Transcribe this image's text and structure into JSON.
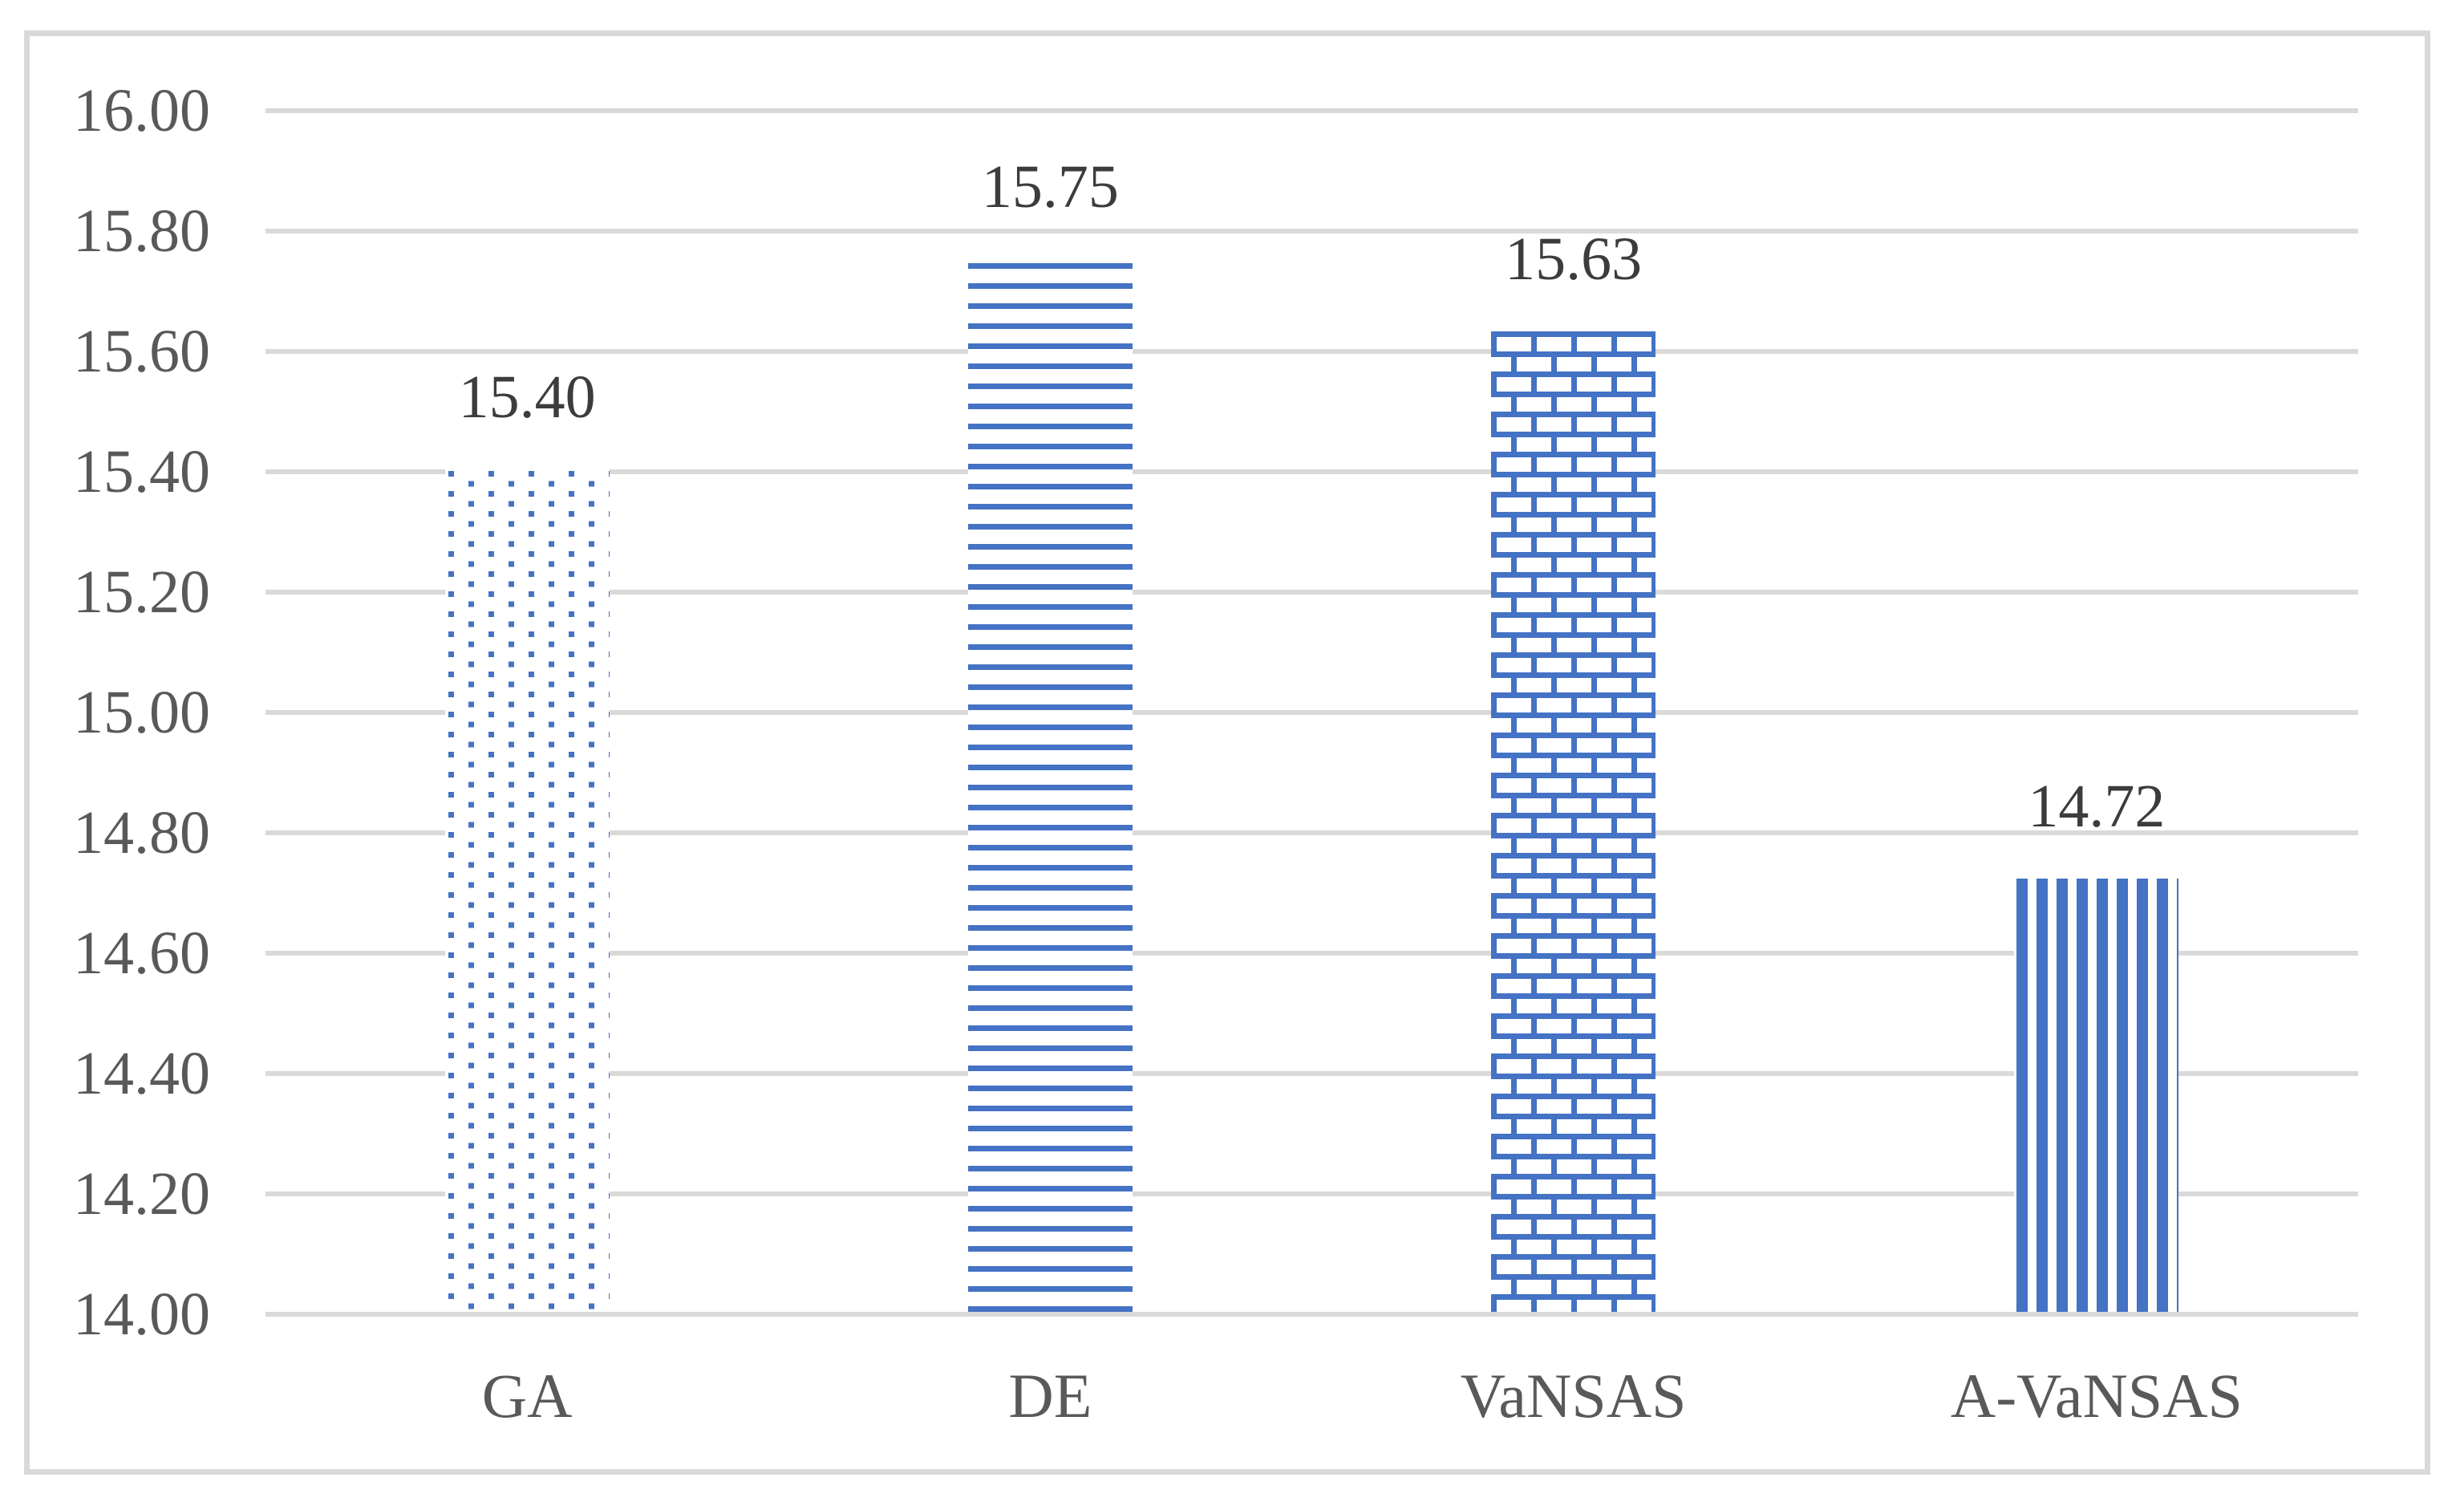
{
  "chart_data": {
    "type": "bar",
    "categories": [
      "GA",
      "DE",
      "VaNSAS",
      "A-VaNSAS"
    ],
    "values": [
      15.4,
      15.75,
      15.63,
      14.72
    ],
    "data_labels": [
      "15.40",
      "15.75",
      "15.63",
      "14.72"
    ],
    "bar_patterns": [
      "dots",
      "horizontal-lines",
      "bricks",
      "vertical-lines"
    ],
    "title": "",
    "xlabel": "",
    "ylabel": "",
    "ylim": [
      14.0,
      16.0
    ],
    "y_tick_step": 0.2,
    "y_tick_labels": [
      "16.00",
      "15.80",
      "15.60",
      "15.40",
      "15.20",
      "15.00",
      "14.80",
      "14.60",
      "14.40",
      "14.20",
      "14.00"
    ],
    "grid": true,
    "legend": "none",
    "colors": {
      "bar_blue": "#4472C4",
      "gridline": "#D9D9D9",
      "frame_border": "#D9D9D9",
      "axis_label_text": "#595959",
      "data_label_text": "#3C3C3C",
      "background": "#FFFFFF"
    }
  }
}
